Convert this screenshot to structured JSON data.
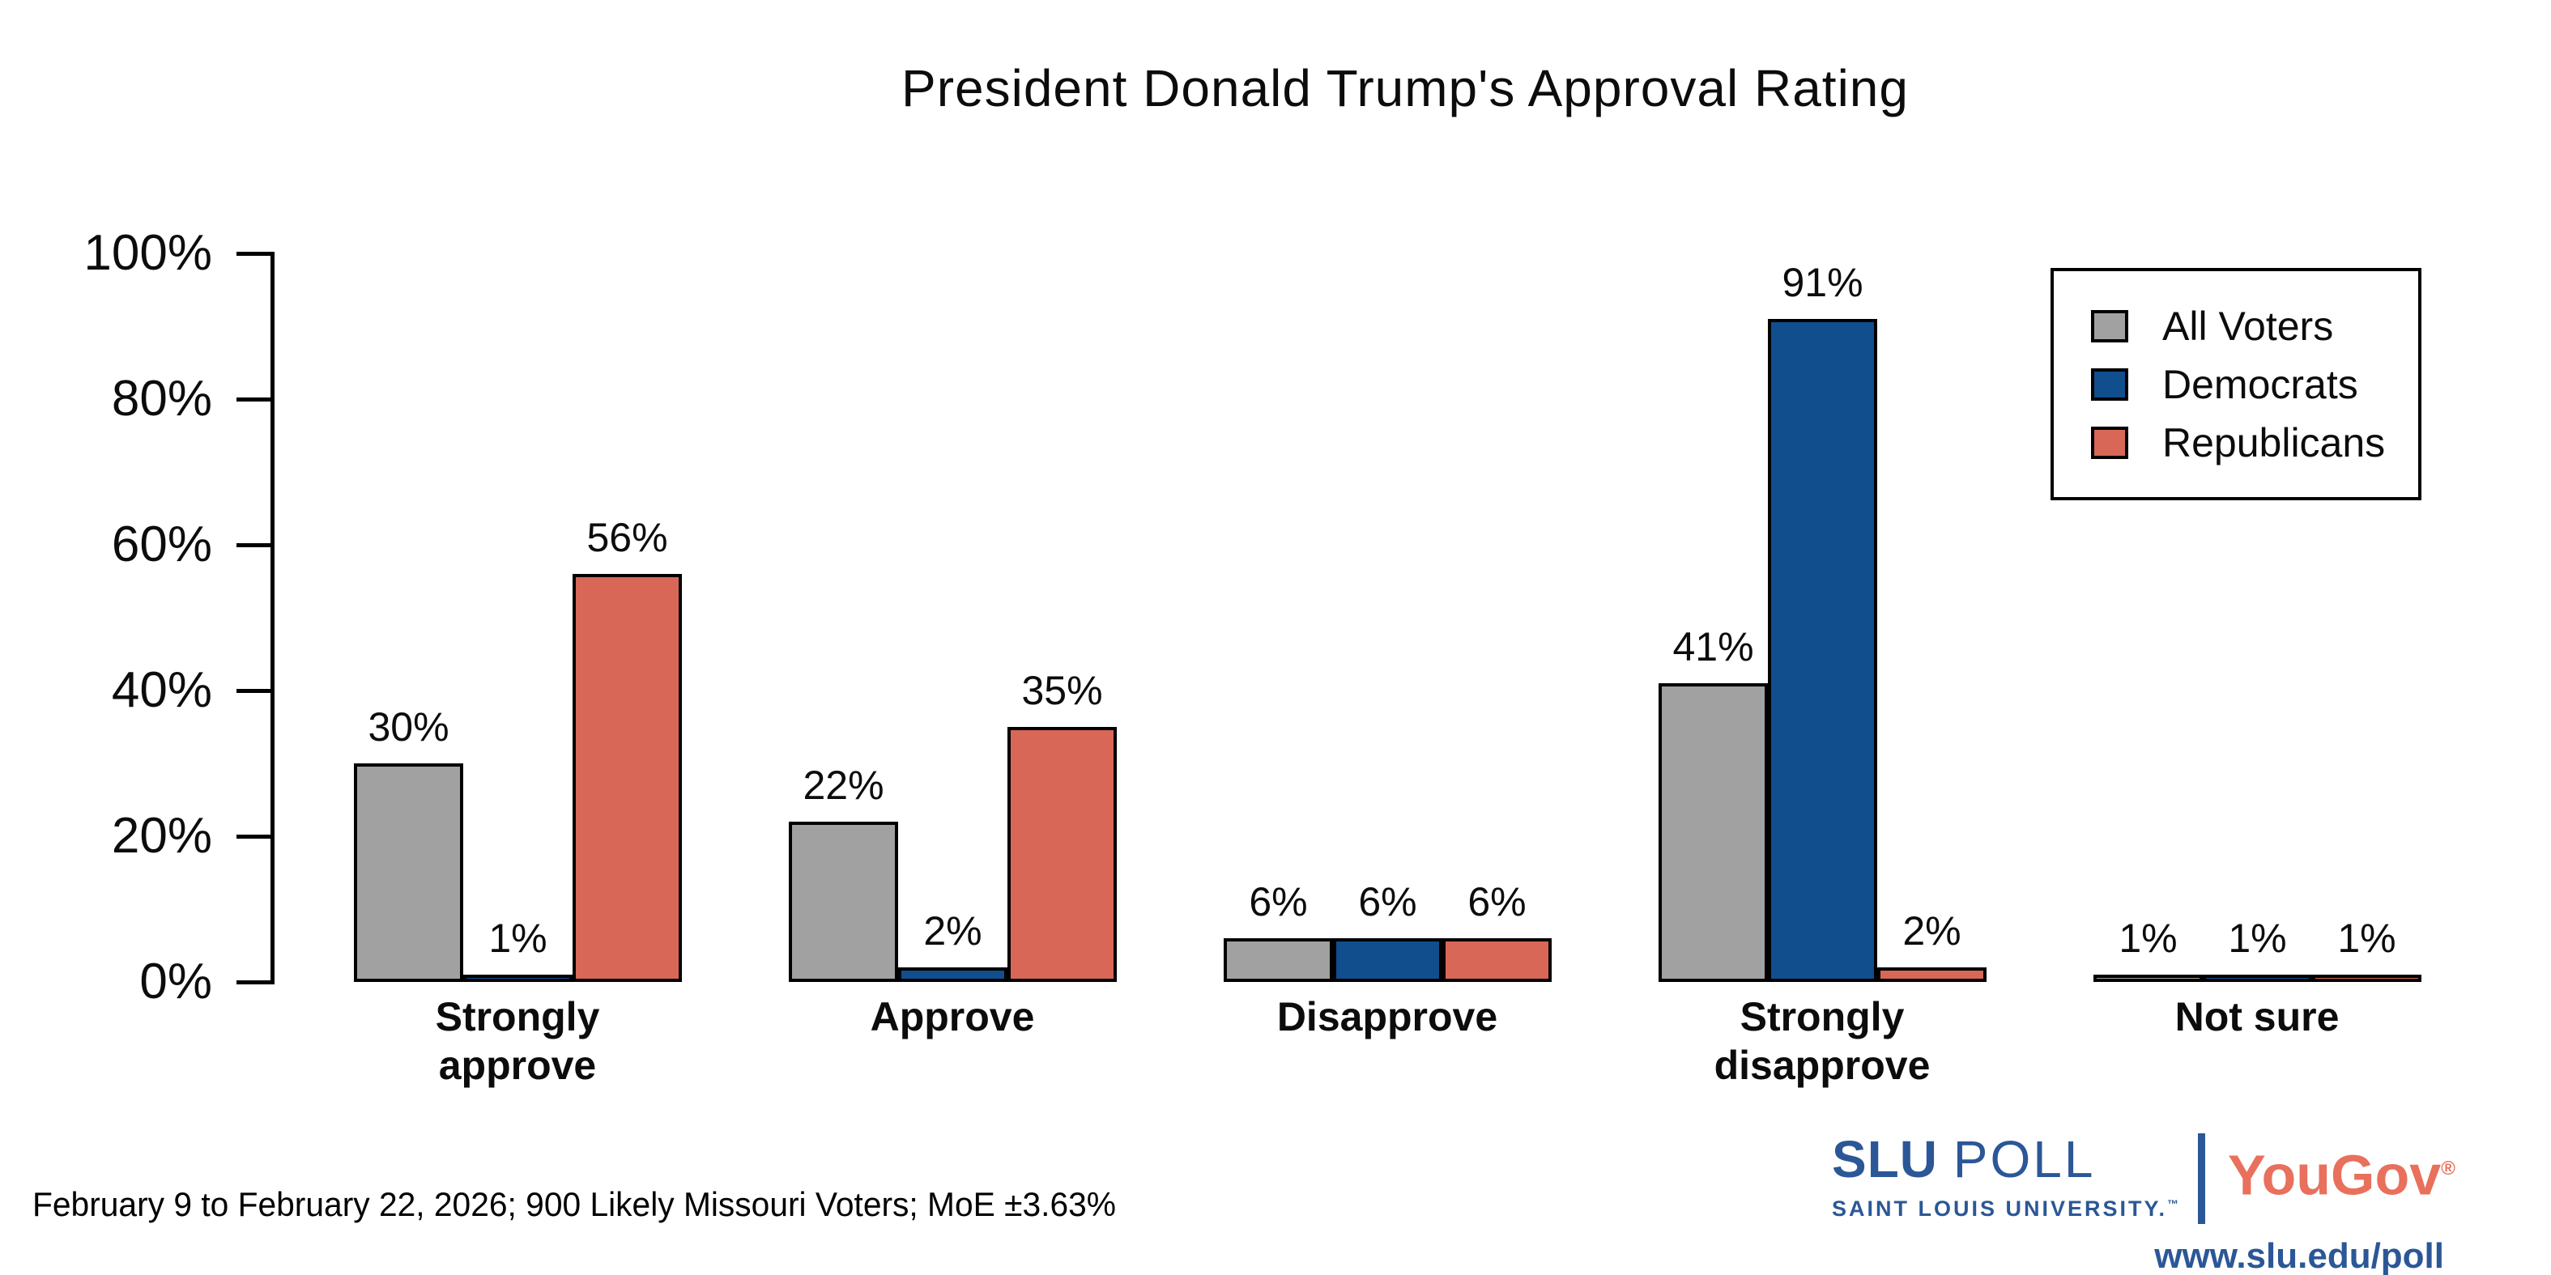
{
  "footnote": "February 9 to February 22, 2026; 900 Likely Missouri Voters; MoE ±3.63%",
  "branding": {
    "slu_wordmark_primary": "SLU",
    "slu_wordmark_secondary": "POLL",
    "slu_subtext": "SAINT LOUIS UNIVERSITY.",
    "slu_trademark": "™",
    "partner_name": "YouGov",
    "partner_registered": "®",
    "website": "www.slu.edu/poll",
    "slu_blue": "#2b5797",
    "yougov_coral": "#e8705c"
  },
  "chart_data": {
    "type": "bar",
    "title": "President Donald Trump's Approval Rating",
    "categories": [
      "Strongly\napprove",
      "Approve",
      "Disapprove",
      "Strongly\ndisapprove",
      "Not sure"
    ],
    "series": [
      {
        "name": "All Voters",
        "color": "#a1a1a1",
        "values": [
          30,
          22,
          6,
          41,
          1
        ]
      },
      {
        "name": "Democrats",
        "color": "#114e8e",
        "values": [
          1,
          2,
          6,
          91,
          1
        ]
      },
      {
        "name": "Republicans",
        "color": "#d96757",
        "values": [
          56,
          35,
          6,
          2,
          1
        ]
      }
    ],
    "value_label_suffix": "%",
    "xlabel": "",
    "ylabel": "",
    "ylim": [
      0,
      100
    ],
    "yticks": [
      0,
      20,
      40,
      60,
      80,
      100
    ],
    "ytick_suffix": "%",
    "grid": false,
    "bar_outline_color": "#000000",
    "legend_position": "top-right"
  }
}
